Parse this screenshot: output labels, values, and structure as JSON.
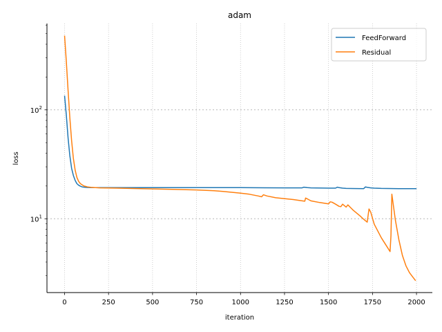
{
  "chart_data": {
    "type": "line",
    "title": "adam",
    "xlabel": "iteration",
    "ylabel": "loss",
    "xlim": [
      -100,
      2090
    ],
    "ylim": [
      2.1,
      620
    ],
    "yscale": "log",
    "grid": true,
    "legend_position": "top-right",
    "x_ticks": [
      0,
      250,
      500,
      750,
      1000,
      1250,
      1500,
      1750,
      2000
    ],
    "x_tick_labels": [
      "0",
      "250",
      "500",
      "750",
      "1000",
      "1250",
      "1500",
      "1750",
      "2000"
    ],
    "y_ticks": [
      10,
      100
    ],
    "y_tick_base": "10",
    "y_tick_exps": [
      "1",
      "2"
    ],
    "series": [
      {
        "name": "FeedForward",
        "color": "#1f77b4",
        "x": [
          0,
          10,
          20,
          30,
          40,
          50,
          60,
          70,
          80,
          90,
          100,
          120,
          150,
          200,
          300,
          500,
          750,
          1000,
          1250,
          1350,
          1360,
          1380,
          1400,
          1500,
          1540,
          1550,
          1560,
          1580,
          1600,
          1700,
          1710,
          1720,
          1740,
          1760,
          1800,
          1900,
          2000
        ],
        "y": [
          135,
          90,
          55,
          38,
          29,
          25,
          22.5,
          21,
          20.3,
          19.9,
          19.6,
          19.4,
          19.3,
          19.3,
          19.3,
          19.3,
          19.3,
          19.3,
          19.2,
          19.2,
          19.5,
          19.3,
          19.2,
          19.1,
          19.1,
          19.5,
          19.3,
          19.1,
          19.0,
          18.9,
          19.6,
          19.4,
          19.2,
          19.1,
          19.0,
          18.9,
          18.9
        ]
      },
      {
        "name": "Residual",
        "color": "#ff7f0e",
        "x": [
          0,
          10,
          20,
          30,
          40,
          50,
          60,
          70,
          80,
          90,
          100,
          110,
          120,
          130,
          150,
          200,
          300,
          500,
          750,
          850,
          900,
          1000,
          1050,
          1100,
          1120,
          1130,
          1150,
          1200,
          1300,
          1350,
          1365,
          1370,
          1380,
          1400,
          1450,
          1500,
          1510,
          1520,
          1540,
          1560,
          1570,
          1580,
          1590,
          1600,
          1610,
          1640,
          1680,
          1700,
          1720,
          1730,
          1740,
          1760,
          1800,
          1850,
          1855,
          1860,
          1880,
          1900,
          1920,
          1940,
          1960,
          1980,
          1995
        ],
        "y": [
          480,
          280,
          150,
          85,
          52,
          36,
          28,
          24,
          22,
          21,
          20.5,
          20,
          19.8,
          19.6,
          19.4,
          19.2,
          19.1,
          18.8,
          18.4,
          18.1,
          17.8,
          17.2,
          16.8,
          16.2,
          15.9,
          16.6,
          16.2,
          15.6,
          15.0,
          14.6,
          14.5,
          15.5,
          15.2,
          14.6,
          14.1,
          13.7,
          14.3,
          14.2,
          13.6,
          13.0,
          12.9,
          13.6,
          13.2,
          12.8,
          13.4,
          12.0,
          10.6,
          9.9,
          9.3,
          12.3,
          11.5,
          8.9,
          6.7,
          5.0,
          7.0,
          16.8,
          9.7,
          6.4,
          4.6,
          3.7,
          3.2,
          2.9,
          2.7
        ]
      }
    ]
  }
}
